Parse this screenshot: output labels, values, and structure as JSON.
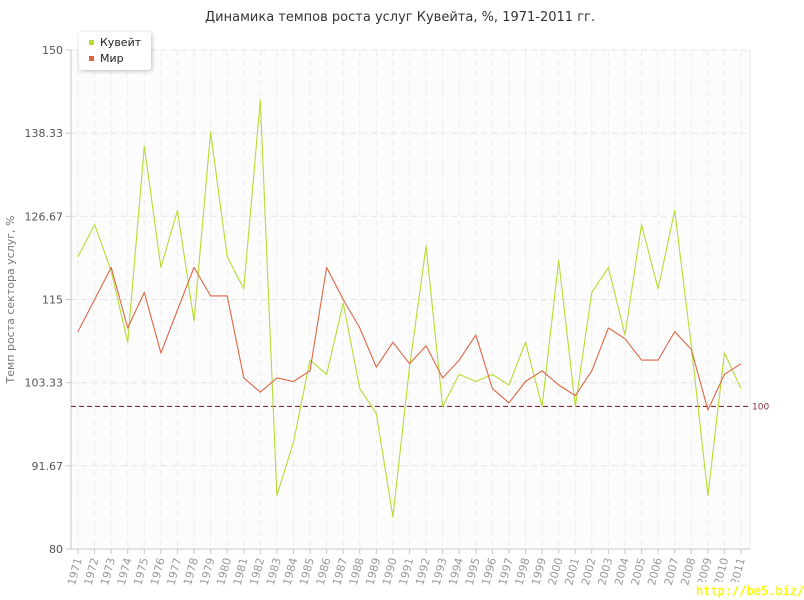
{
  "chart_data": {
    "type": "line",
    "title": "Динамика темпов роста услуг Кувейта, %, 1971-2011 гг.",
    "ylabel": "Темп роста сектора услуг, %",
    "xlabel": "",
    "ylim": [
      80,
      150
    ],
    "yticks": [
      "150",
      "138.33",
      "126.67",
      "115",
      "103.33",
      "91.67",
      "80"
    ],
    "ytick_values": [
      150,
      138.33,
      126.67,
      115,
      103.33,
      91.67,
      80
    ],
    "x": [
      "1971",
      "1972",
      "1973",
      "1974",
      "1975",
      "1976",
      "1977",
      "1978",
      "1979",
      "1980",
      "1981",
      "1982",
      "1983",
      "1984",
      "1985",
      "1986",
      "1987",
      "1988",
      "1989",
      "1990",
      "1991",
      "1992",
      "1993",
      "1994",
      "1995",
      "1996",
      "1997",
      "1998",
      "1999",
      "2000",
      "2001",
      "2002",
      "2003",
      "2004",
      "2005",
      "2006",
      "2007",
      "2008",
      "2009",
      "2010",
      "2011"
    ],
    "reference_line": {
      "value": 100,
      "label": "100",
      "color": "#8b2b3a"
    },
    "legend_position": "top-left",
    "grid": true,
    "series": [
      {
        "name": "Кувейт",
        "color": "#b5dc33",
        "values": [
          121,
          125.5,
          119,
          109,
          136.5,
          119.5,
          127.5,
          112,
          138.5,
          121,
          116.5,
          143,
          87.5,
          95,
          106.5,
          104.5,
          114.5,
          102.5,
          99,
          84.5,
          105.5,
          122.5,
          100,
          104.5,
          103.5,
          104.5,
          103,
          109,
          100,
          120.5,
          100,
          116,
          119.5,
          110,
          125.5,
          116.5,
          127.5,
          108.5,
          87.5,
          107.5,
          102.5
        ]
      },
      {
        "name": "Мир",
        "color": "#dd6644",
        "values": [
          110.5,
          115,
          119.5,
          111,
          116,
          107.5,
          113.5,
          119.5,
          115.5,
          115.5,
          104,
          102,
          104,
          103.5,
          105,
          119.5,
          115,
          111,
          105.5,
          109,
          106,
          108.5,
          104,
          106.5,
          110,
          102.5,
          100.5,
          103.5,
          105,
          103,
          101.5,
          105,
          111,
          109.5,
          106.5,
          106.5,
          110.5,
          108,
          99.5,
          104.5,
          106
        ]
      }
    ]
  },
  "watermark": "http://be5.biz/"
}
